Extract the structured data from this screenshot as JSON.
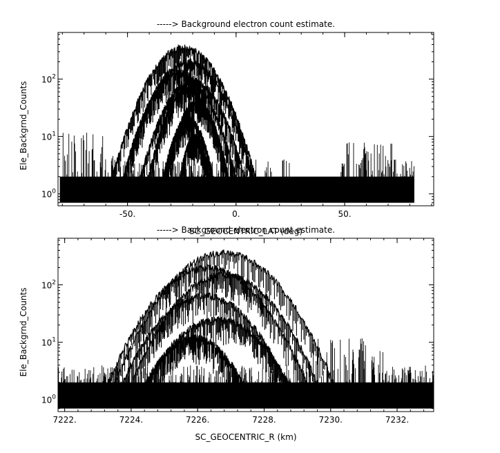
{
  "chart_data": [
    {
      "type": "line",
      "title": "-----> Background electron count estimate.",
      "xlabel": "SC_GEOCENTRIC_LAT (deg)",
      "ylabel": "Ele_Backgrnd_Counts",
      "yscale": "log",
      "xlim": [
        -82,
        91
      ],
      "ylim": [
        0.62,
        650
      ],
      "xticks": [
        -50,
        0,
        50
      ],
      "xtick_labels": [
        "-50.",
        "0.",
        "50."
      ],
      "yticks": [
        1,
        10,
        100
      ],
      "ytick_labels": [
        "10^0",
        "10^1",
        "10^2"
      ],
      "x_range_of_data": [
        -81,
        82
      ],
      "noise_floor": [
        1,
        2
      ],
      "noise_segments": [
        {
          "x": [
            -81,
            -60
          ],
          "peak": 12
        },
        {
          "x": [
            -60,
            -52
          ],
          "peak": 5
        },
        {
          "x": [
            -52,
            25
          ],
          "peak": 4
        },
        {
          "x": [
            25,
            48
          ],
          "peak": 2
        },
        {
          "x": [
            48,
            72
          ],
          "peak": 8
        },
        {
          "x": [
            72,
            82
          ],
          "peak": 4
        }
      ],
      "series": [
        {
          "center": -24,
          "halfwidth": 35,
          "peak": 350
        },
        {
          "center": -22,
          "halfwidth": 32,
          "peak": 200
        },
        {
          "center": -26,
          "halfwidth": 28,
          "peak": 130
        },
        {
          "center": -20,
          "halfwidth": 26,
          "peak": 95
        },
        {
          "center": -22,
          "halfwidth": 20,
          "peak": 65
        },
        {
          "center": -18,
          "halfwidth": 16,
          "peak": 40
        },
        {
          "center": -22,
          "halfwidth": 13,
          "peak": 20
        },
        {
          "center": -19,
          "halfwidth": 8,
          "peak": 10
        }
      ]
    },
    {
      "type": "line",
      "title": "-----> Background electron count estimate.",
      "xlabel": "SC_GEOCENTRIC_R (km)",
      "ylabel": "Ele_Backgrnd_Counts",
      "yscale": "log",
      "xlim": [
        7221.8,
        7233.1
      ],
      "ylim": [
        0.62,
        650
      ],
      "xticks": [
        7222,
        7224,
        7226,
        7228,
        7230,
        7232
      ],
      "xtick_labels": [
        "7222.",
        "7224.",
        "7226.",
        "7228.",
        "7230.",
        "7232."
      ],
      "yticks": [
        1,
        10,
        100
      ],
      "ytick_labels": [
        "10^0",
        "10^1",
        "10^2"
      ],
      "x_range_of_data": [
        7221.8,
        7233.1
      ],
      "noise_floor": [
        1,
        2
      ],
      "noise_segments": [
        {
          "x": [
            7221.8,
            7229.3
          ],
          "peak": 4
        },
        {
          "x": [
            7229.3,
            7231.6
          ],
          "peak": 12
        },
        {
          "x": [
            7231.6,
            7233.1
          ],
          "peak": 4
        }
      ],
      "series": [
        {
          "center": 7226.8,
          "halfwidth": 3.5,
          "peak": 360
        },
        {
          "center": 7226.3,
          "halfwidth": 3.2,
          "peak": 200
        },
        {
          "center": 7226.8,
          "halfwidth": 3.0,
          "peak": 150
        },
        {
          "center": 7226.2,
          "halfwidth": 2.7,
          "peak": 65
        },
        {
          "center": 7226.6,
          "halfwidth": 2.4,
          "peak": 25
        },
        {
          "center": 7225.9,
          "halfwidth": 1.7,
          "peak": 12
        }
      ]
    }
  ]
}
